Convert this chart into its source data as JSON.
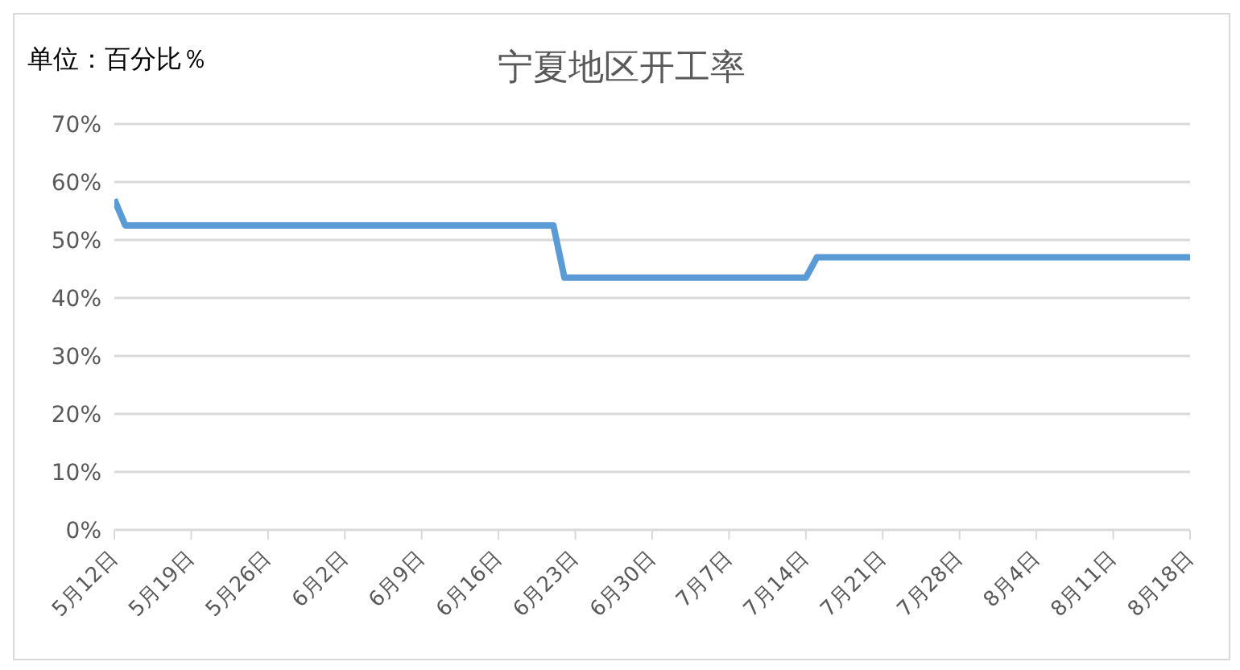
{
  "chart_data": {
    "type": "line",
    "title": "宁夏地区开工率",
    "annotations": [
      "单位：百分比％"
    ],
    "x": [
      "--05-12",
      "--05-13",
      "--06-21",
      "--06-22",
      "--07-14",
      "--07-15",
      "--08-18"
    ],
    "series": [
      {
        "color": "#5b9bd5",
        "values": [
          57,
          52.5,
          52.5,
          43.5,
          43.5,
          47,
          47
        ]
      }
    ],
    "xlim": [
      "--05-12",
      "--08-18"
    ],
    "xticks": [
      {
        "value": "--05-12",
        "label": "5月12日"
      },
      {
        "value": "--05-19",
        "label": "5月19日"
      },
      {
        "value": "--05-26",
        "label": "5月26日"
      },
      {
        "value": "--06-02",
        "label": "6月2日"
      },
      {
        "value": "--06-09",
        "label": "6月9日"
      },
      {
        "value": "--06-16",
        "label": "6月16日"
      },
      {
        "value": "--06-23",
        "label": "6月23日"
      },
      {
        "value": "--06-30",
        "label": "6月30日"
      },
      {
        "value": "--07-07",
        "label": "7月7日"
      },
      {
        "value": "--07-14",
        "label": "7月14日"
      },
      {
        "value": "--07-21",
        "label": "7月21日"
      },
      {
        "value": "--07-28",
        "label": "7月28日"
      },
      {
        "value": "--08-04",
        "label": "8月4日"
      },
      {
        "value": "--08-11",
        "label": "8月11日"
      },
      {
        "value": "--08-18",
        "label": "8月18日"
      }
    ],
    "ylim": [
      0,
      70
    ],
    "yticks": [
      {
        "value": 0,
        "label": "0%"
      },
      {
        "value": 10,
        "label": "10%"
      },
      {
        "value": 20,
        "label": "20%"
      },
      {
        "value": 30,
        "label": "30%"
      },
      {
        "value": 40,
        "label": "40%"
      },
      {
        "value": 50,
        "label": "50%"
      },
      {
        "value": 60,
        "label": "60%"
      },
      {
        "value": 70,
        "label": "70%"
      }
    ],
    "grid": "y",
    "marker": "none",
    "line_style": "solid"
  }
}
